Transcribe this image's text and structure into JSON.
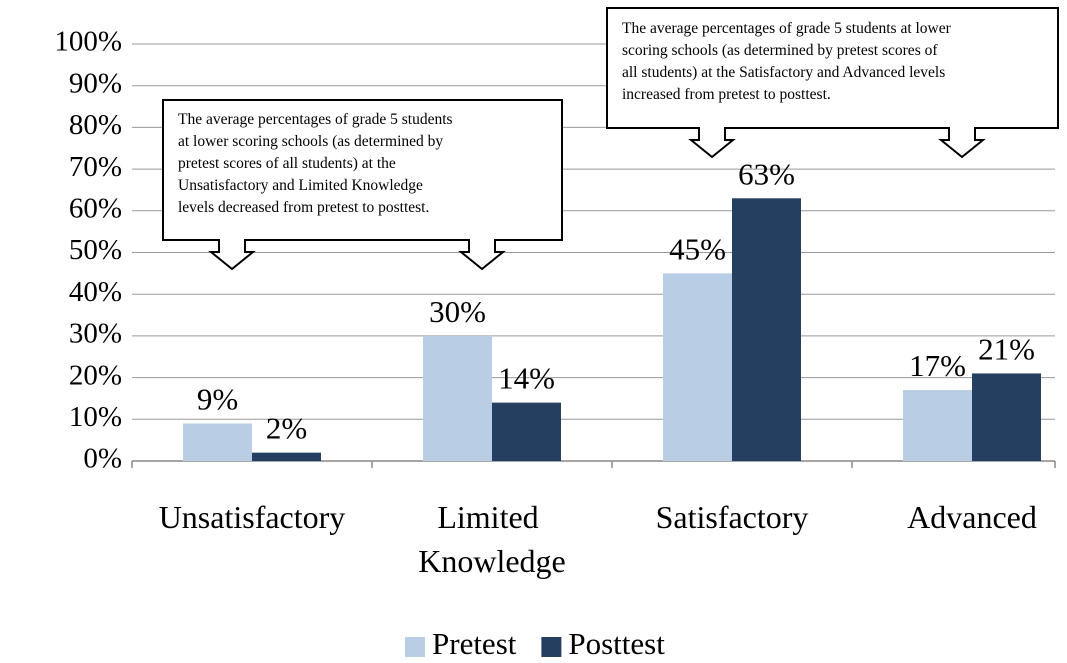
{
  "chart_data": {
    "type": "bar",
    "categories": [
      "Unsatisfactory",
      "Limited Knowledge",
      "Satisfactory",
      "Advanced"
    ],
    "series": [
      {
        "name": "Pretest",
        "color": "#b9cde5",
        "values": [
          9,
          30,
          45,
          17
        ],
        "value_labels": [
          "9%",
          "30%",
          "45%",
          "17%"
        ]
      },
      {
        "name": "Posttest",
        "color": "#243f60",
        "values": [
          2,
          14,
          63,
          21
        ],
        "value_labels": [
          "2%",
          "14%",
          "63%",
          "21%"
        ]
      }
    ],
    "ylim": [
      0,
      100
    ],
    "yticks": [
      {
        "value": 0,
        "label": "0%"
      },
      {
        "value": 10,
        "label": "10%"
      },
      {
        "value": 20,
        "label": "20%"
      },
      {
        "value": 30,
        "label": "30%"
      },
      {
        "value": 40,
        "label": "40%"
      },
      {
        "value": 50,
        "label": "50%"
      },
      {
        "value": 60,
        "label": "60%"
      },
      {
        "value": 70,
        "label": "70%"
      },
      {
        "value": 80,
        "label": "80%"
      },
      {
        "value": 90,
        "label": "90%"
      },
      {
        "value": 100,
        "label": "100%"
      }
    ],
    "grid": true,
    "legend": "bottom",
    "annotations": [
      {
        "lines": [
          "The average percentages of grade 5 students",
          "at lower scoring schools (as determined by",
          "pretest scores of all students) at the",
          "Unsatisfactory and Limited Knowledge",
          "levels decreased from pretest to posttest."
        ]
      },
      {
        "lines": [
          "The average percentages of grade 5 students at lower",
          "scoring schools (as determined by pretest scores of",
          "all students) at the Satisfactory and Advanced levels",
          "increased from pretest to posttest."
        ]
      }
    ]
  }
}
